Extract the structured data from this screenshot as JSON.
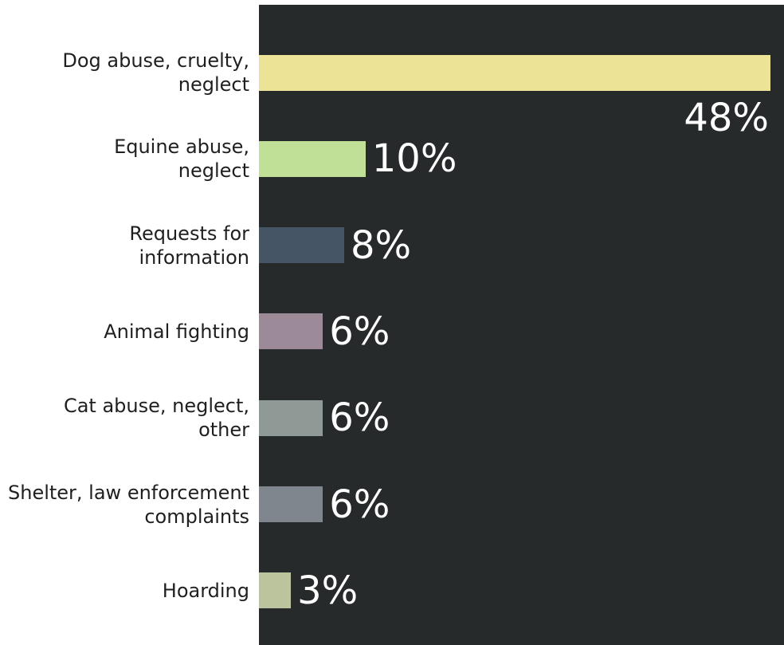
{
  "chart_data": {
    "type": "bar",
    "orientation": "horizontal",
    "categories": [
      "Dog abuse, cruelty,\nneglect",
      "Equine abuse,\nneglect",
      "Requests for\ninformation",
      "Animal fighting",
      "Cat abuse, neglect,\nother",
      "Shelter, law enforcement\ncomplaints",
      "Hoarding"
    ],
    "values": [
      48,
      10,
      8,
      6,
      6,
      6,
      3
    ],
    "value_labels": [
      "48%",
      "10%",
      "8%",
      "6%",
      "6%",
      "6%",
      "3%"
    ],
    "colors": [
      "#ece396",
      "#bfe096",
      "#455565",
      "#9c8a98",
      "#8f9a97",
      "#7f868d",
      "#bbc49c"
    ]
  }
}
